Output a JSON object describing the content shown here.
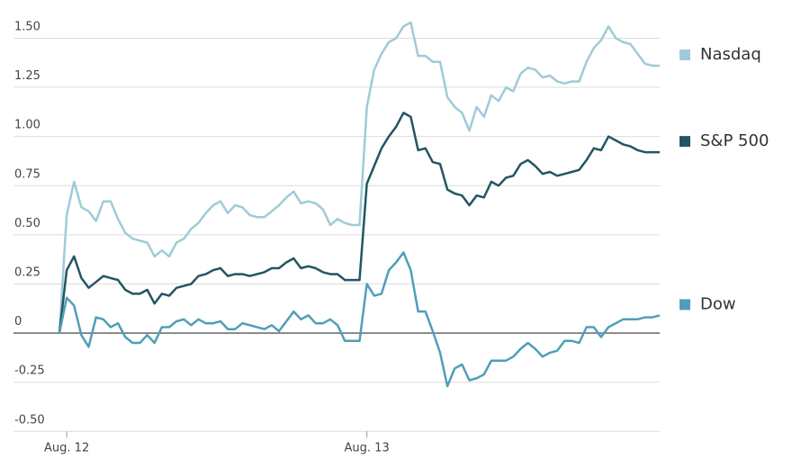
{
  "chart_data": {
    "type": "line",
    "categories": [
      null,
      "Aug. 12",
      null,
      null,
      null,
      null,
      null,
      null,
      null,
      null,
      null,
      null,
      null,
      null,
      null,
      null,
      null,
      null,
      null,
      null,
      null,
      null,
      null,
      null,
      null,
      null,
      null,
      null,
      null,
      null,
      null,
      null,
      null,
      null,
      null,
      null,
      null,
      null,
      null,
      null,
      null,
      null,
      "Aug. 13",
      null,
      null,
      null,
      null,
      null,
      null,
      null,
      null,
      null,
      null,
      null,
      null,
      null,
      null,
      null,
      null,
      null,
      null,
      null,
      null,
      null,
      null,
      null,
      null,
      null,
      null,
      null,
      null,
      null,
      null,
      null,
      null,
      null,
      null,
      null,
      null,
      null,
      null,
      null,
      null
    ],
    "series": [
      {
        "name": "Nasdaq",
        "color": "#9fcbd8",
        "values": [
          0,
          0.6,
          0.77,
          0.64,
          0.62,
          0.57,
          0.67,
          0.67,
          0.58,
          0.51,
          0.48,
          0.47,
          0.46,
          0.39,
          0.42,
          0.39,
          0.46,
          0.48,
          0.53,
          0.56,
          0.61,
          0.65,
          0.67,
          0.61,
          0.65,
          0.64,
          0.6,
          0.59,
          0.59,
          0.62,
          0.65,
          0.69,
          0.72,
          0.66,
          0.67,
          0.66,
          0.63,
          0.55,
          0.58,
          0.56,
          0.55,
          0.55,
          1.15,
          1.34,
          1.42,
          1.48,
          1.5,
          1.56,
          1.58,
          1.41,
          1.41,
          1.38,
          1.38,
          1.2,
          1.15,
          1.12,
          1.03,
          1.15,
          1.1,
          1.21,
          1.18,
          1.25,
          1.23,
          1.32,
          1.35,
          1.34,
          1.3,
          1.31,
          1.28,
          1.27,
          1.28,
          1.28,
          1.38,
          1.45,
          1.49,
          1.56,
          1.5,
          1.48,
          1.47,
          1.42,
          1.37,
          1.36,
          1.36
        ]
      },
      {
        "name": "S&P 500",
        "color": "#245563",
        "values": [
          0,
          0.32,
          0.39,
          0.28,
          0.23,
          0.26,
          0.29,
          0.28,
          0.27,
          0.22,
          0.2,
          0.2,
          0.22,
          0.15,
          0.2,
          0.19,
          0.23,
          0.24,
          0.25,
          0.29,
          0.3,
          0.32,
          0.33,
          0.29,
          0.3,
          0.3,
          0.29,
          0.3,
          0.31,
          0.33,
          0.33,
          0.36,
          0.38,
          0.33,
          0.34,
          0.33,
          0.31,
          0.3,
          0.3,
          0.27,
          0.27,
          0.27,
          0.76,
          0.85,
          0.94,
          1.0,
          1.05,
          1.12,
          1.1,
          0.93,
          0.94,
          0.87,
          0.86,
          0.73,
          0.71,
          0.7,
          0.65,
          0.7,
          0.69,
          0.77,
          0.75,
          0.79,
          0.8,
          0.86,
          0.88,
          0.85,
          0.81,
          0.82,
          0.8,
          0.81,
          0.82,
          0.83,
          0.88,
          0.94,
          0.93,
          1.0,
          0.98,
          0.96,
          0.95,
          0.93,
          0.92,
          0.92,
          0.92
        ]
      },
      {
        "name": "Dow",
        "color": "#4f9fb8",
        "values": [
          0,
          0.18,
          0.14,
          -0.01,
          -0.07,
          0.08,
          0.07,
          0.03,
          0.05,
          -0.02,
          -0.05,
          -0.05,
          -0.01,
          -0.05,
          0.03,
          0.03,
          0.06,
          0.07,
          0.04,
          0.07,
          0.05,
          0.05,
          0.06,
          0.02,
          0.02,
          0.05,
          0.04,
          0.03,
          0.02,
          0.04,
          0.01,
          0.06,
          0.11,
          0.07,
          0.09,
          0.05,
          0.05,
          0.07,
          0.04,
          -0.04,
          -0.04,
          -0.04,
          0.25,
          0.19,
          0.2,
          0.32,
          0.36,
          0.41,
          0.32,
          0.11,
          0.11,
          0.01,
          -0.1,
          -0.27,
          -0.18,
          -0.16,
          -0.24,
          -0.23,
          -0.21,
          -0.14,
          -0.14,
          -0.14,
          -0.12,
          -0.08,
          -0.05,
          -0.08,
          -0.12,
          -0.1,
          -0.09,
          -0.04,
          -0.04,
          -0.05,
          0.03,
          0.03,
          -0.02,
          0.03,
          0.05,
          0.07,
          0.07,
          0.07,
          0.08,
          0.08,
          0.09
        ]
      }
    ],
    "ylim": [
      -0.5,
      1.6
    ],
    "yticks": [
      {
        "value": -0.5,
        "label": "-0.50"
      },
      -0.25,
      0,
      0.25,
      {
        "value": 0.5,
        "label": "0.50"
      },
      0.75,
      {
        "value": 1,
        "label": "1.00"
      },
      1.25,
      {
        "value": 1.5,
        "label": "1.50"
      }
    ],
    "grid": true,
    "legend": "right"
  }
}
